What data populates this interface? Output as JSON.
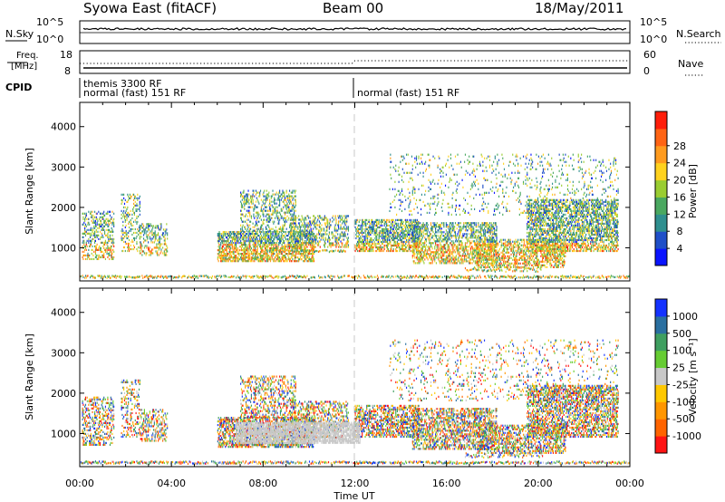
{
  "header": {
    "station": "Syowa East (fitACF)",
    "beam": "Beam 00",
    "date": "18/May/2011"
  },
  "noise_panel": {
    "left_label": "N.Sky",
    "right_label": "N.Search",
    "left_ticks": [
      "10^5",
      "10^0"
    ],
    "right_ticks": [
      "10^5",
      "10^0"
    ]
  },
  "freq_panel": {
    "left_label_1": "Freq.",
    "left_label_2": "[MHz]",
    "right_label": "Nave",
    "left_ticks": [
      "18",
      "8"
    ],
    "right_ticks": [
      "60",
      "0"
    ]
  },
  "cpid": {
    "label": "CPID",
    "segments": [
      {
        "start_hour": 0,
        "lines": [
          "themis 3300 RF",
          "normal (fast) 151 RF"
        ]
      },
      {
        "start_hour": 12,
        "lines": [
          "normal (fast) 151 RF"
        ]
      }
    ]
  },
  "chart_data": [
    {
      "type": "heatmap",
      "name": "Power",
      "ylabel": "Slant Range [km]",
      "xlabel": "Time UT",
      "x_ticks": [
        "00:00",
        "04:00",
        "08:00",
        "12:00",
        "16:00",
        "20:00",
        "00:00"
      ],
      "x_range_hours": [
        0,
        24
      ],
      "y_range_km": [
        180,
        4600
      ],
      "y_ticks": [
        1000,
        2000,
        3000,
        4000
      ],
      "colorbar": {
        "label": "Power [dB]",
        "ticks": [
          "4",
          "8",
          "12",
          "16",
          "20",
          "24",
          "28"
        ],
        "colors": [
          "#0a14ff",
          "#1f4fc8",
          "#2f8f8f",
          "#4aa860",
          "#9acd32",
          "#ffd21e",
          "#ff9b1e",
          "#ff6414",
          "#ff1e0a"
        ]
      },
      "scatter_regions_hour_km": [
        {
          "h": [
            0.1,
            1.5
          ],
          "r": [
            700,
            1900
          ],
          "density": 0.35
        },
        {
          "h": [
            1.8,
            2.6
          ],
          "r": [
            900,
            2300
          ],
          "density": 0.25
        },
        {
          "h": [
            2.6,
            3.8
          ],
          "r": [
            800,
            1600
          ],
          "density": 0.3
        },
        {
          "h": [
            6.0,
            10.2
          ],
          "r": [
            650,
            1400
          ],
          "density": 0.55
        },
        {
          "h": [
            7.0,
            9.4
          ],
          "r": [
            1400,
            2400
          ],
          "density": 0.3
        },
        {
          "h": [
            9.2,
            11.7
          ],
          "r": [
            1000,
            1800
          ],
          "density": 0.35
        },
        {
          "h": [
            12.0,
            14.8
          ],
          "r": [
            900,
            1700
          ],
          "density": 0.5
        },
        {
          "h": [
            14.5,
            18.2
          ],
          "r": [
            600,
            1600
          ],
          "density": 0.45
        },
        {
          "h": [
            17.3,
            21.2
          ],
          "r": [
            500,
            1200
          ],
          "density": 0.45
        },
        {
          "h": [
            19.5,
            23.5
          ],
          "r": [
            900,
            2200
          ],
          "density": 0.5
        },
        {
          "h": [
            13.5,
            23.5
          ],
          "r": [
            1800,
            3300
          ],
          "density": 0.08
        }
      ],
      "band_features_hour_km": [
        {
          "h": [
            0.0,
            24.0
          ],
          "r": 260,
          "width": 60
        },
        {
          "h": [
            6.1,
            8.0
          ],
          "r": 720,
          "width": 70
        },
        {
          "h": [
            8.0,
            11.6
          ],
          "r": 900,
          "width": 50
        },
        {
          "h": [
            16.8,
            20.2
          ],
          "r": 440,
          "width": 110
        }
      ]
    },
    {
      "type": "heatmap",
      "name": "Velocity",
      "ylabel": "Slant Range [km]",
      "xlabel": "Time UT",
      "x_ticks": [
        "00:00",
        "04:00",
        "08:00",
        "12:00",
        "16:00",
        "20:00",
        "00:00"
      ],
      "x_range_hours": [
        0,
        24
      ],
      "y_range_km": [
        180,
        4600
      ],
      "y_ticks": [
        1000,
        2000,
        3000,
        4000
      ],
      "colorbar": {
        "label": "Velocity [m s⁻¹]",
        "ticks": [
          "1000",
          "500",
          "100",
          "25",
          "-25",
          "-100",
          "-500",
          "-1000"
        ],
        "colors": [
          "#1432ff",
          "#2a6fa0",
          "#3f9f60",
          "#66cc33",
          "#c8c8c8",
          "#ffc800",
          "#ff9600",
          "#ff6400",
          "#ff1414"
        ]
      },
      "ground_scatter_regions_hour_km": [
        {
          "h": [
            6.8,
            12.2
          ],
          "r": [
            750,
            1250
          ],
          "density": 0.7
        }
      ]
    }
  ]
}
